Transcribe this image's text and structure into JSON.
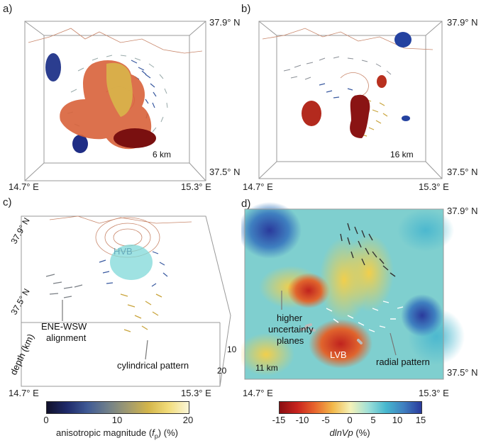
{
  "panels": {
    "a": {
      "label": "a)",
      "depth": "6 km",
      "lat_top": "37.9° N",
      "lat_bottom": "37.5° N",
      "lon_left": "14.7° E",
      "lon_right": "15.3° E"
    },
    "b": {
      "label": "b)",
      "depth": "16 km",
      "lat_top": "37.9° N",
      "lat_bottom": "37.5° N",
      "lon_left": "14.7° E",
      "lon_right": "15.3° E"
    },
    "c": {
      "label": "c)",
      "lat_top": "37.9° N",
      "lat_mid": "37.5° N",
      "lon_left": "14.7° E",
      "lon_right": "15.3° E",
      "hvb": "HVB",
      "ene": "ENE-WSW\nalignment",
      "ene1": "ENE-WSW",
      "ene2": "alignment",
      "cyl": "cylindrical pattern",
      "depth_axis": "depth (km)",
      "depth_ticks": [
        "10",
        "20"
      ]
    },
    "d": {
      "label": "d)",
      "depth": "11 km",
      "lat_top": "37.9° N",
      "lat_bottom": "37.5° N",
      "lon_left": "14.7° E",
      "lon_right": "15.3° E",
      "unc1": "higher",
      "unc2": "uncertainty",
      "unc3": "planes",
      "lvb": "LVB",
      "radial": "radial pattern"
    }
  },
  "colorbar_left": {
    "ticks": [
      "0",
      "10",
      "20"
    ],
    "caption_pre": "anisotropic magnitude (",
    "caption_sym": "f",
    "caption_sub": "p",
    "caption_post": ") (%)"
  },
  "colorbar_right": {
    "ticks": [
      "-15",
      "-10",
      "-5",
      "0",
      "5",
      "10",
      "15"
    ],
    "caption_var": "dlnVp",
    "caption_unit": " (%)"
  }
}
